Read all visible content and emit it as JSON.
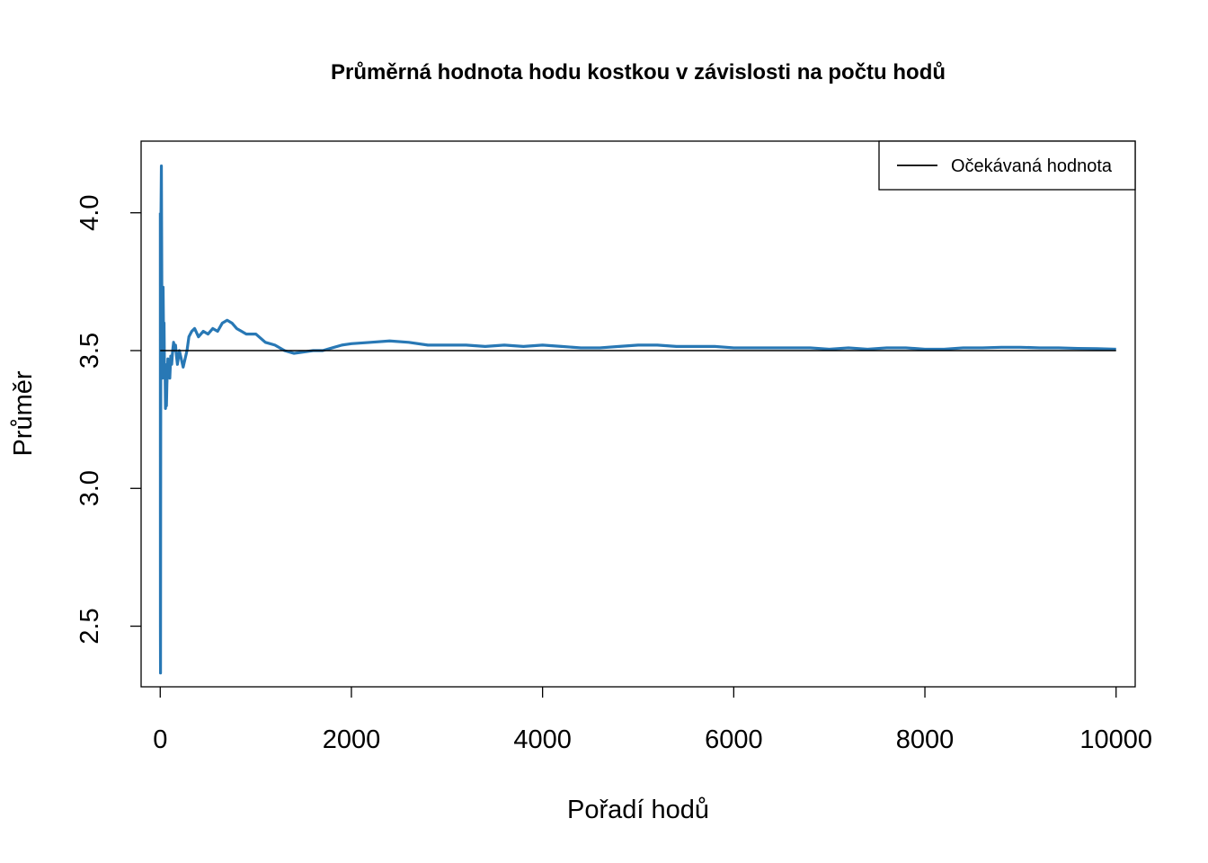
{
  "chart_data": {
    "type": "line",
    "title": "Průměrná hodnota hodu kostkou v závislosti na počtu hodů",
    "xlabel": "Pořadí hodů",
    "ylabel": "Průměr",
    "xlim": [
      -200,
      10200
    ],
    "ylim": [
      2.28,
      4.26
    ],
    "xticks": [
      0,
      2000,
      4000,
      6000,
      8000,
      10000
    ],
    "xtick_labels": [
      "0",
      "2000",
      "4000",
      "6000",
      "8000",
      "10000"
    ],
    "yticks": [
      2.5,
      3.0,
      3.5,
      4.0
    ],
    "ytick_labels": [
      "2.5",
      "3.0",
      "3.5",
      "4.0"
    ],
    "grid": false,
    "legend": {
      "position": "top-right",
      "entries": [
        "Očekávaná hodnota"
      ]
    },
    "reference_line": {
      "name": "Očekávaná hodnota",
      "y": 3.5,
      "x": [
        0,
        10000
      ],
      "color": "#000000"
    },
    "series": [
      {
        "color": "#2878b5",
        "x": [
          1,
          2,
          3,
          5,
          8,
          12,
          15,
          18,
          22,
          25,
          30,
          35,
          40,
          45,
          50,
          55,
          60,
          65,
          70,
          80,
          90,
          100,
          110,
          120,
          130,
          140,
          150,
          160,
          170,
          180,
          200,
          220,
          240,
          260,
          280,
          300,
          330,
          360,
          400,
          450,
          500,
          550,
          600,
          650,
          700,
          750,
          800,
          850,
          900,
          1000,
          1100,
          1200,
          1300,
          1400,
          1500,
          1600,
          1700,
          1800,
          1900,
          2000,
          2200,
          2400,
          2600,
          2800,
          3000,
          3200,
          3400,
          3600,
          3800,
          4000,
          4200,
          4400,
          4600,
          4800,
          5000,
          5200,
          5400,
          5600,
          5800,
          6000,
          6200,
          6400,
          6600,
          6800,
          7000,
          7200,
          7400,
          7600,
          7800,
          8000,
          8200,
          8400,
          8600,
          8800,
          9000,
          9200,
          9400,
          9600,
          9800,
          10000
        ],
        "y": [
          4.0,
          2.5,
          2.33,
          3.2,
          4.0,
          4.17,
          3.9,
          3.6,
          3.4,
          3.52,
          3.73,
          3.55,
          3.6,
          3.4,
          3.45,
          3.29,
          3.35,
          3.3,
          3.38,
          3.47,
          3.44,
          3.4,
          3.48,
          3.45,
          3.5,
          3.53,
          3.5,
          3.52,
          3.48,
          3.45,
          3.5,
          3.47,
          3.44,
          3.47,
          3.5,
          3.55,
          3.57,
          3.58,
          3.55,
          3.57,
          3.56,
          3.58,
          3.57,
          3.6,
          3.61,
          3.6,
          3.58,
          3.57,
          3.56,
          3.56,
          3.53,
          3.52,
          3.5,
          3.49,
          3.495,
          3.5,
          3.5,
          3.51,
          3.52,
          3.525,
          3.53,
          3.535,
          3.53,
          3.52,
          3.52,
          3.52,
          3.515,
          3.52,
          3.515,
          3.52,
          3.515,
          3.51,
          3.51,
          3.515,
          3.52,
          3.52,
          3.515,
          3.515,
          3.515,
          3.51,
          3.51,
          3.51,
          3.51,
          3.51,
          3.505,
          3.51,
          3.505,
          3.51,
          3.51,
          3.505,
          3.505,
          3.51,
          3.51,
          3.512,
          3.512,
          3.51,
          3.51,
          3.508,
          3.507,
          3.505
        ]
      }
    ]
  }
}
